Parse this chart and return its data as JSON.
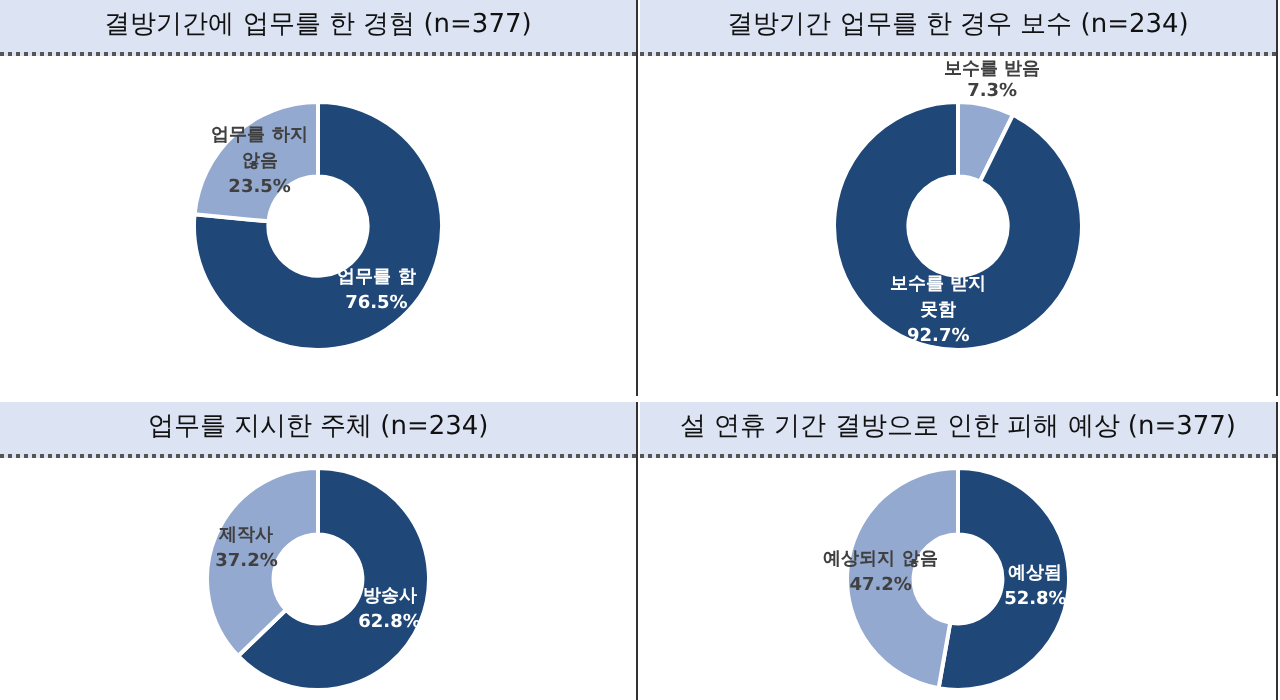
{
  "chart_data": [
    {
      "type": "donut",
      "title": "결방기간에 업무를 한 경험 (n=377)",
      "categories": [
        "업무를 함",
        "업무를 하지 않음"
      ],
      "values": [
        76.5,
        23.5
      ],
      "colors": [
        "#1f4778",
        "#94a9d0"
      ],
      "value_labels": [
        "76.5%",
        "23.5%"
      ],
      "legend": false
    },
    {
      "type": "donut",
      "title": "결방기간 업무를 한 경우 보수 (n=234)",
      "categories": [
        "보수를 받음",
        "보수를 받지 못함"
      ],
      "values": [
        7.3,
        92.7
      ],
      "colors": [
        "#94a9d0",
        "#1f4778"
      ],
      "value_labels": [
        "7.3%",
        "92.7%"
      ],
      "legend": false
    },
    {
      "type": "donut",
      "title": "업무를 지시한 주체 (n=234)",
      "categories": [
        "방송사",
        "제작사"
      ],
      "values": [
        62.8,
        37.2
      ],
      "colors": [
        "#1f4778",
        "#94a9d0"
      ],
      "value_labels": [
        "62.8%",
        "37.2%"
      ],
      "legend": false
    },
    {
      "type": "donut",
      "title": "설 연휴 기간 결방으로 인한 피해 예상 (n=377)",
      "categories": [
        "예상됨",
        "예상되지 않음"
      ],
      "values": [
        52.8,
        47.2
      ],
      "colors": [
        "#1f4778",
        "#94a9d0"
      ],
      "value_labels": [
        "52.8%",
        "47.2%"
      ],
      "legend": false
    }
  ]
}
